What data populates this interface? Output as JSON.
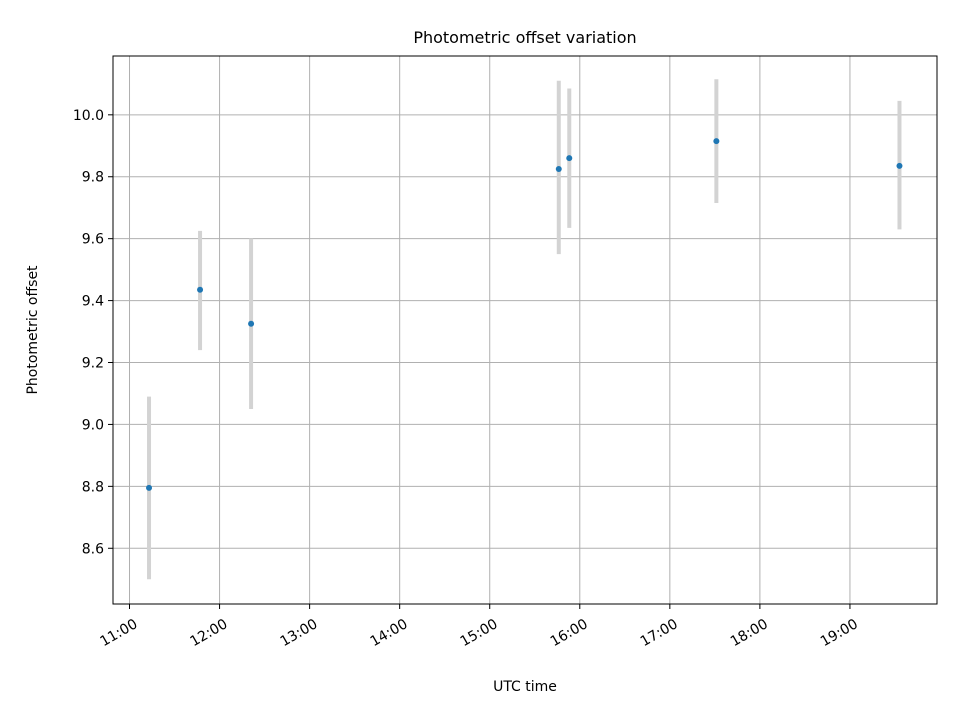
{
  "chart_data": {
    "type": "scatter",
    "title": "Photometric offset variation",
    "xlabel": "UTC time",
    "ylabel": "Photometric offset",
    "x_tick_labels": [
      "11:00",
      "12:00",
      "13:00",
      "14:00",
      "15:00",
      "16:00",
      "17:00",
      "18:00",
      "19:00"
    ],
    "y_tick_labels": [
      "8.6",
      "8.8",
      "9.0",
      "9.2",
      "9.4",
      "9.6",
      "9.8",
      "10.0"
    ],
    "y_ticks": [
      8.6,
      8.8,
      9.0,
      9.2,
      9.4,
      9.6,
      9.8,
      10.0
    ],
    "xlim": [
      "10:49",
      "19:58"
    ],
    "ylim": [
      8.42,
      10.19
    ],
    "grid": true,
    "legend": "none",
    "series": [
      {
        "x": [
          "11:13",
          "11:47",
          "12:21",
          "15:46",
          "15:53",
          "17:31",
          "19:33"
        ],
        "y": [
          8.795,
          9.435,
          9.325,
          9.825,
          9.86,
          9.915,
          9.835
        ],
        "y_err_low": [
          8.5,
          9.24,
          9.05,
          9.55,
          9.635,
          9.715,
          9.63
        ],
        "y_err_high": [
          9.09,
          9.625,
          9.6,
          10.11,
          10.085,
          10.115,
          10.045
        ]
      }
    ],
    "colors": {
      "point": "#1f77b4",
      "error_bar": "#d3d3d3",
      "grid": "#b0b0b0"
    }
  }
}
